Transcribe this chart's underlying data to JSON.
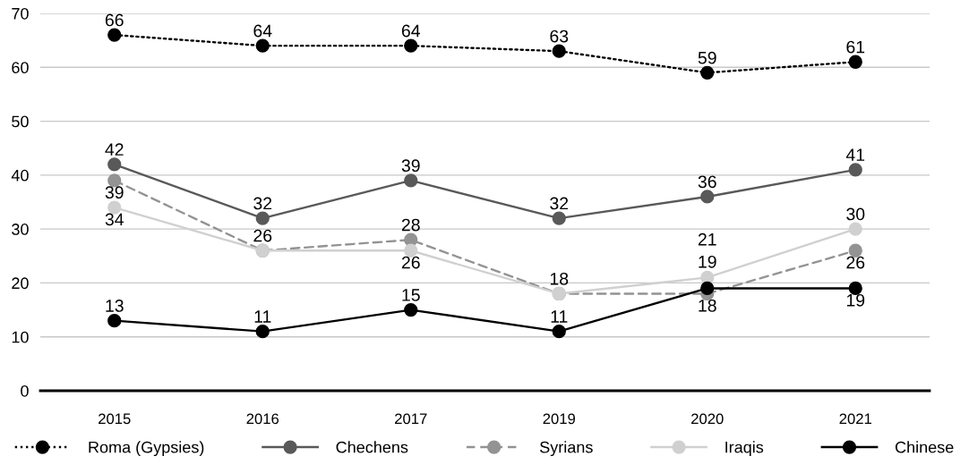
{
  "chart_data": {
    "type": "line",
    "categories": [
      "2015",
      "2016",
      "2017",
      "2019",
      "2020",
      "2021"
    ],
    "ylim": [
      0,
      70
    ],
    "yticks": [
      0,
      10,
      20,
      30,
      40,
      50,
      60,
      70
    ],
    "grid": "y",
    "legend": "bottom",
    "marker": "circle",
    "series": [
      {
        "name": "Roma (Gypsies)",
        "color": "#000000",
        "line_style": "dotted",
        "values": [
          66,
          64,
          64,
          63,
          59,
          61
        ],
        "value_labels": [
          "66",
          "64",
          "64",
          "63",
          "59",
          "61"
        ]
      },
      {
        "name": "Chechens",
        "color": "#595959",
        "line_style": "solid",
        "values": [
          42,
          32,
          39,
          32,
          36,
          41
        ],
        "value_labels": [
          "42",
          "32",
          "39",
          "32",
          "36",
          "41"
        ]
      },
      {
        "name": "Syrians",
        "color": "#939393",
        "line_style": "dashed",
        "values": [
          39,
          26,
          28,
          18,
          18,
          26
        ],
        "value_labels": [
          "39",
          null,
          "28",
          null,
          "18",
          "26"
        ]
      },
      {
        "name": "Iraqis",
        "color": "#d0d0d0",
        "line_style": "solid",
        "values": [
          34,
          26,
          26,
          18,
          21,
          30
        ],
        "value_labels": [
          "34",
          "26",
          "26",
          "18",
          "21",
          "30"
        ]
      },
      {
        "name": "Chinese",
        "color": "#000000",
        "line_style": "solid",
        "values": [
          13,
          11,
          15,
          11,
          19,
          19
        ],
        "value_labels": [
          "13",
          "11",
          "15",
          "11",
          "19",
          "19"
        ]
      }
    ]
  }
}
